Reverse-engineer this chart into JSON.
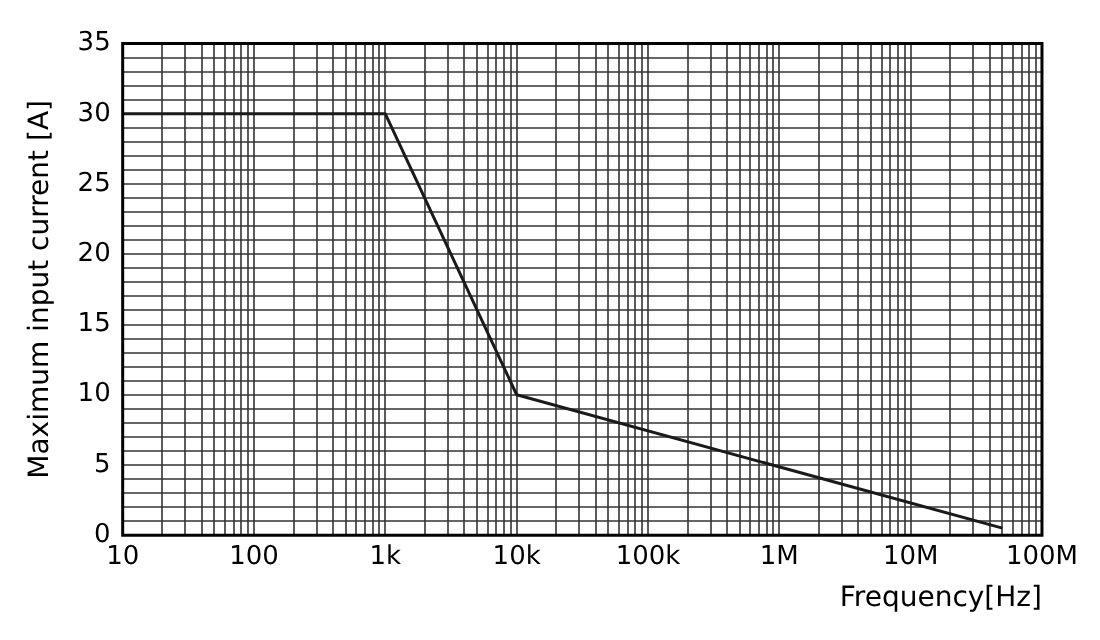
{
  "chart_data": {
    "type": "line",
    "xlabel": "Frequency[Hz]",
    "ylabel": "Maximum input current [A]",
    "log": "x",
    "grid": true,
    "marker": "none",
    "line_style": "solid",
    "x": [
      10,
      1000,
      10000,
      50000000
    ],
    "series": [
      {
        "color": "#1a1a1a",
        "values": [
          30,
          30,
          10,
          0.5
        ]
      }
    ],
    "xlim": [
      10,
      100000000
    ],
    "xticks": [
      10,
      {
        "value": 20,
        "label": null
      },
      {
        "value": 30,
        "label": null
      },
      {
        "value": 40,
        "label": null
      },
      {
        "value": 50,
        "label": null
      },
      {
        "value": 60,
        "label": null
      },
      {
        "value": 70,
        "label": null
      },
      {
        "value": 80,
        "label": null
      },
      {
        "value": 90,
        "label": null
      },
      100,
      {
        "value": 200,
        "label": null
      },
      {
        "value": 300,
        "label": null
      },
      {
        "value": 400,
        "label": null
      },
      {
        "value": 500,
        "label": null
      },
      {
        "value": 600,
        "label": null
      },
      {
        "value": 700,
        "label": null
      },
      {
        "value": 800,
        "label": null
      },
      {
        "value": 900,
        "label": null
      },
      {
        "value": 1000,
        "label": "1k"
      },
      {
        "value": 2000,
        "label": null
      },
      {
        "value": 3000,
        "label": null
      },
      {
        "value": 4000,
        "label": null
      },
      {
        "value": 5000,
        "label": null
      },
      {
        "value": 6000,
        "label": null
      },
      {
        "value": 7000,
        "label": null
      },
      {
        "value": 8000,
        "label": null
      },
      {
        "value": 9000,
        "label": null
      },
      {
        "value": 10000,
        "label": "10k"
      },
      {
        "value": 20000,
        "label": null
      },
      {
        "value": 30000,
        "label": null
      },
      {
        "value": 40000,
        "label": null
      },
      {
        "value": 50000,
        "label": null
      },
      {
        "value": 60000,
        "label": null
      },
      {
        "value": 70000,
        "label": null
      },
      {
        "value": 80000,
        "label": null
      },
      {
        "value": 90000,
        "label": null
      },
      {
        "value": 100000,
        "label": "100k"
      },
      {
        "value": 200000,
        "label": null
      },
      {
        "value": 300000,
        "label": null
      },
      {
        "value": 400000,
        "label": null
      },
      {
        "value": 500000,
        "label": null
      },
      {
        "value": 600000,
        "label": null
      },
      {
        "value": 700000,
        "label": null
      },
      {
        "value": 800000,
        "label": null
      },
      {
        "value": 900000,
        "label": null
      },
      {
        "value": 1000000,
        "label": "1M"
      },
      {
        "value": 2000000,
        "label": null
      },
      {
        "value": 3000000,
        "label": null
      },
      {
        "value": 4000000,
        "label": null
      },
      {
        "value": 5000000,
        "label": null
      },
      {
        "value": 6000000,
        "label": null
      },
      {
        "value": 7000000,
        "label": null
      },
      {
        "value": 8000000,
        "label": null
      },
      {
        "value": 9000000,
        "label": null
      },
      {
        "value": 10000000,
        "label": "10M"
      },
      {
        "value": 20000000,
        "label": null
      },
      {
        "value": 30000000,
        "label": null
      },
      {
        "value": 40000000,
        "label": null
      },
      {
        "value": 50000000,
        "label": null
      },
      {
        "value": 60000000,
        "label": null
      },
      {
        "value": 70000000,
        "label": null
      },
      {
        "value": 80000000,
        "label": null
      },
      {
        "value": 90000000,
        "label": null
      },
      {
        "value": 100000000,
        "label": "100M"
      }
    ],
    "ylim": [
      0,
      35
    ],
    "yticks": [
      0,
      {
        "value": 1,
        "label": null
      },
      {
        "value": 2,
        "label": null
      },
      {
        "value": 3,
        "label": null
      },
      {
        "value": 4,
        "label": null
      },
      5,
      {
        "value": 6,
        "label": null
      },
      {
        "value": 7,
        "label": null
      },
      {
        "value": 8,
        "label": null
      },
      {
        "value": 9,
        "label": null
      },
      10,
      {
        "value": 11,
        "label": null
      },
      {
        "value": 12,
        "label": null
      },
      {
        "value": 13,
        "label": null
      },
      {
        "value": 14,
        "label": null
      },
      15,
      {
        "value": 16,
        "label": null
      },
      {
        "value": 17,
        "label": null
      },
      {
        "value": 18,
        "label": null
      },
      {
        "value": 19,
        "label": null
      },
      20,
      {
        "value": 21,
        "label": null
      },
      {
        "value": 22,
        "label": null
      },
      {
        "value": 23,
        "label": null
      },
      {
        "value": 24,
        "label": null
      },
      25,
      {
        "value": 26,
        "label": null
      },
      {
        "value": 27,
        "label": null
      },
      {
        "value": 28,
        "label": null
      },
      {
        "value": 29,
        "label": null
      },
      30,
      {
        "value": 31,
        "label": null
      },
      {
        "value": 32,
        "label": null
      },
      {
        "value": 33,
        "label": null
      },
      {
        "value": 34,
        "label": null
      },
      35
    ]
  }
}
